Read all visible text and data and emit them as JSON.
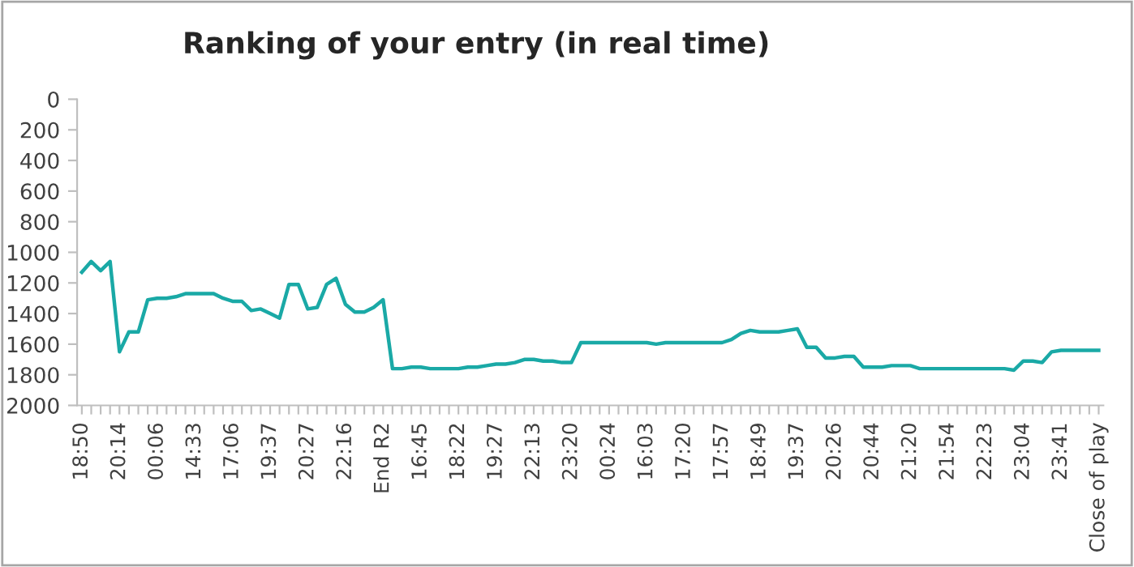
{
  "chart_data": {
    "type": "line",
    "title": "Ranking of your entry (in real time)",
    "categories": [
      "18:50",
      null,
      null,
      null,
      "20:14",
      null,
      null,
      null,
      "00:06",
      null,
      null,
      null,
      "14:33",
      null,
      null,
      null,
      "17:06",
      null,
      null,
      null,
      "19:37",
      null,
      null,
      null,
      "20:27",
      null,
      null,
      null,
      "22:16",
      null,
      null,
      null,
      "End R2",
      null,
      null,
      null,
      "16:45",
      null,
      null,
      null,
      "18:22",
      null,
      null,
      null,
      "19:27",
      null,
      null,
      null,
      "22:13",
      null,
      null,
      null,
      "23:20",
      null,
      null,
      null,
      "00:24",
      null,
      null,
      null,
      "16:03",
      null,
      null,
      null,
      "17:20",
      null,
      null,
      null,
      "17:57",
      null,
      null,
      null,
      "18:49",
      null,
      null,
      null,
      "19:37",
      null,
      null,
      null,
      "20:26",
      null,
      null,
      null,
      "20:44",
      null,
      null,
      null,
      "21:20",
      null,
      null,
      null,
      "21:54",
      null,
      null,
      null,
      "22:23",
      null,
      null,
      null,
      "23:04",
      null,
      null,
      null,
      "23:41",
      null,
      null,
      null,
      "Close of play"
    ],
    "series": [
      {
        "color": "#1aa9a6",
        "values": [
          1130,
          1060,
          1120,
          1060,
          1650,
          1520,
          1520,
          1310,
          1300,
          1300,
          1290,
          1270,
          1270,
          1270,
          1270,
          1300,
          1320,
          1320,
          1380,
          1370,
          1400,
          1430,
          1210,
          1210,
          1370,
          1360,
          1210,
          1170,
          1340,
          1390,
          1390,
          1360,
          1310,
          1760,
          1760,
          1750,
          1750,
          1760,
          1760,
          1760,
          1760,
          1750,
          1750,
          1740,
          1730,
          1730,
          1720,
          1700,
          1700,
          1710,
          1710,
          1720,
          1720,
          1590,
          1590,
          1590,
          1590,
          1590,
          1590,
          1590,
          1590,
          1600,
          1590,
          1590,
          1590,
          1590,
          1590,
          1590,
          1590,
          1570,
          1530,
          1510,
          1520,
          1520,
          1520,
          1510,
          1500,
          1620,
          1620,
          1690,
          1690,
          1680,
          1680,
          1750,
          1750,
          1750,
          1740,
          1740,
          1740,
          1760,
          1760,
          1760,
          1760,
          1760,
          1760,
          1760,
          1760,
          1760,
          1760,
          1770,
          1710,
          1710,
          1720,
          1650,
          1640,
          1640,
          1640,
          1640,
          1640
        ]
      }
    ],
    "ylim": [
      2000,
      0
    ],
    "yticks": [
      0,
      200,
      400,
      600,
      800,
      1000,
      1200,
      1400,
      1600,
      1800,
      2000
    ],
    "grid": false,
    "marker": "none",
    "line_style": "solid"
  }
}
